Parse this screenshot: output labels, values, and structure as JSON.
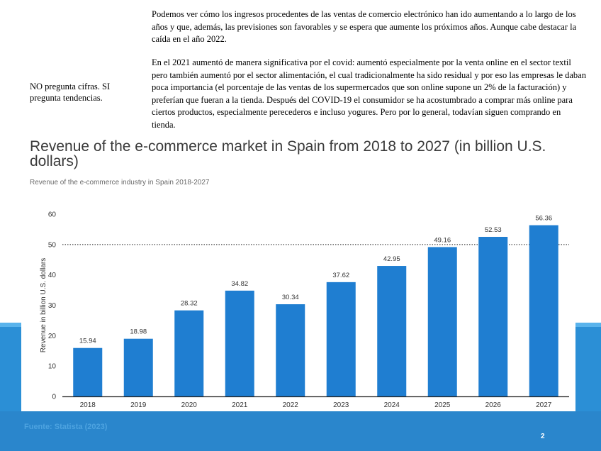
{
  "side_note": "NO pregunta cifras. SI pregunta tendencias.",
  "paragraph_1": "Podemos ver cómo los ingresos procedentes de las ventas de comercio electrónico han ido aumentando a lo largo de los años y que, además, las previsiones son favorables y se espera que aumente los próximos años. Aunque cabe destacar la caída en el año 2022.",
  "paragraph_2": "En el 2021 aumentó de manera significativa por el covid: aumentó especialmente por la venta online en el sector textil pero también aumentó por el sector alimentación, el cual tradicionalmente ha sido residual y por eso las empresas le daban poca importancia (el porcentaje de las ventas de los supermercados que son online supone un 2% de la facturación) y preferían que fueran a la tienda. Después del COVID-19 el consumidor se ha acostumbrado a comprar más online para ciertos productos, especialmente perecederos e incluso yogures. Pero por lo general, todavían siguen comprando en tienda.",
  "source": "Fuente: Statista (2023)",
  "page_number": "2",
  "colors": {
    "bar": "#1f7ed1",
    "side_band": "#2b8fd6",
    "bottom_band": "#2a86cc",
    "source_text": "#4da3e0"
  },
  "chart_data": {
    "type": "bar",
    "title": "Revenue of the e-commerce market in Spain from 2018 to 2027 (in billion U.S. dollars)",
    "subtitle": "Revenue of the e-commerce industry in Spain 2018-2027",
    "xlabel": "",
    "ylabel": "Revenue in billion U.S. dollars",
    "categories": [
      "2018",
      "2019",
      "2020",
      "2021",
      "2022",
      "2023",
      "2024",
      "2025",
      "2026",
      "2027"
    ],
    "values": [
      15.94,
      18.98,
      28.32,
      34.82,
      30.34,
      37.62,
      42.95,
      49.16,
      52.53,
      56.36
    ],
    "value_labels": [
      "15.94",
      "18.98",
      "28.32",
      "34.82",
      "30.34",
      "37.62",
      "42.95",
      "49.16",
      "52.53",
      "56.36"
    ],
    "ylim": [
      0,
      60
    ],
    "yticks": [
      "0",
      "10",
      "20",
      "30",
      "40",
      "50",
      "60"
    ],
    "reference_line": 50,
    "grid": false,
    "legend": "none"
  }
}
